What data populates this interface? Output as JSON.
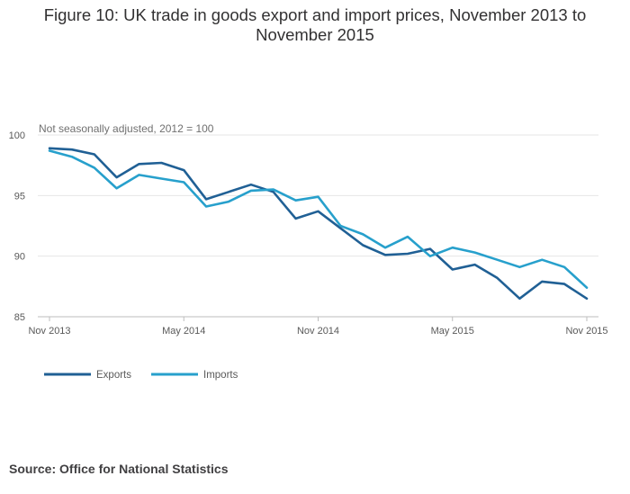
{
  "title": "Figure 10: UK trade in goods export and import prices, November 2013 to November 2015",
  "source": "Source: Office for National Statistics",
  "chart_data": {
    "type": "line",
    "subtitle": "Not seasonally adjusted, 2012 = 100",
    "x": [
      "Nov 2013",
      "Dec 2013",
      "Jan 2014",
      "Feb 2014",
      "Mar 2014",
      "Apr 2014",
      "May 2014",
      "Jun 2014",
      "Jul 2014",
      "Aug 2014",
      "Sep 2014",
      "Oct 2014",
      "Nov 2014",
      "Dec 2014",
      "Jan 2015",
      "Feb 2015",
      "Mar 2015",
      "Apr 2015",
      "May 2015",
      "Jun 2015",
      "Jul 2015",
      "Aug 2015",
      "Sep 2015",
      "Oct 2015",
      "Nov 2015"
    ],
    "x_tick_labels": [
      "Nov 2013",
      "May 2014",
      "Nov 2014",
      "May 2015",
      "Nov 2015"
    ],
    "x_tick_index": [
      0,
      6,
      12,
      18,
      24
    ],
    "y_ticks": [
      85,
      90,
      95,
      100
    ],
    "ylim": [
      85,
      100
    ],
    "grid": true,
    "legend_position": "bottom-left",
    "series": [
      {
        "name": "Exports",
        "color": "#206095",
        "values": [
          98.9,
          98.8,
          98.4,
          96.5,
          97.6,
          97.7,
          97.1,
          94.7,
          95.3,
          95.9,
          95.3,
          93.1,
          93.7,
          92.3,
          90.9,
          90.1,
          90.2,
          90.6,
          88.9,
          89.3,
          88.2,
          86.5,
          87.9,
          87.7,
          86.5
        ]
      },
      {
        "name": "Imports",
        "color": "#27a0cc",
        "values": [
          98.7,
          98.2,
          97.3,
          95.6,
          96.7,
          96.4,
          96.1,
          94.1,
          94.5,
          95.4,
          95.5,
          94.6,
          94.9,
          92.5,
          91.8,
          90.7,
          91.6,
          90.0,
          90.7,
          90.3,
          89.7,
          89.1,
          89.7,
          89.1,
          87.4
        ]
      }
    ]
  }
}
